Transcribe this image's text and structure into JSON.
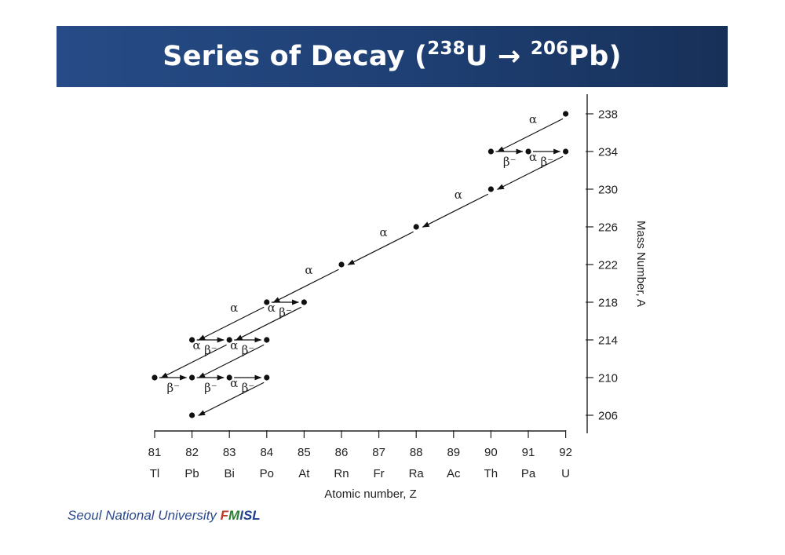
{
  "title": {
    "prefix": "Series of Decay (",
    "from_mass": "238",
    "from_element": "U",
    "arrow": " → ",
    "to_mass": "206",
    "to_element": "Pb",
    "suffix": ")"
  },
  "footer": {
    "institution": "Seoul National University ",
    "lab": [
      "F",
      "M",
      "I",
      "S",
      "L"
    ],
    "lab_colors": [
      "#c0392b",
      "#2e7d32",
      "#2c4a8c",
      "#1f3f8c",
      "#1f3f8c"
    ]
  },
  "chart_data": {
    "type": "diagram",
    "xlabel": "Atomic number, Z",
    "ylabel": "Mass Number, A",
    "x_ticks": [
      81,
      82,
      83,
      84,
      85,
      86,
      87,
      88,
      89,
      90,
      91,
      92
    ],
    "element_symbols": [
      "Tl",
      "Pb",
      "Bi",
      "Po",
      "At",
      "Rn",
      "Fr",
      "Ra",
      "Ac",
      "Th",
      "Pa",
      "U"
    ],
    "y_ticks": [
      206,
      210,
      214,
      218,
      222,
      226,
      230,
      234,
      238
    ],
    "xlim": [
      81,
      92
    ],
    "ylim": [
      205,
      241
    ],
    "nuclides": [
      {
        "z": 92,
        "a": 238
      },
      {
        "z": 90,
        "a": 234
      },
      {
        "z": 91,
        "a": 234
      },
      {
        "z": 92,
        "a": 234
      },
      {
        "z": 90,
        "a": 230
      },
      {
        "z": 88,
        "a": 226
      },
      {
        "z": 86,
        "a": 222
      },
      {
        "z": 84,
        "a": 218
      },
      {
        "z": 85,
        "a": 218
      },
      {
        "z": 82,
        "a": 214
      },
      {
        "z": 83,
        "a": 214
      },
      {
        "z": 84,
        "a": 214
      },
      {
        "z": 81,
        "a": 210
      },
      {
        "z": 82,
        "a": 210
      },
      {
        "z": 83,
        "a": 210
      },
      {
        "z": 84,
        "a": 210
      },
      {
        "z": 82,
        "a": 206
      }
    ],
    "decays": [
      {
        "type": "α",
        "from": [
          92,
          238
        ],
        "to": [
          90,
          234
        ]
      },
      {
        "type": "β⁻",
        "from": [
          90,
          234
        ],
        "to": [
          91,
          234
        ]
      },
      {
        "type": "β⁻",
        "from": [
          91,
          234
        ],
        "to": [
          92,
          234
        ]
      },
      {
        "type": "α",
        "from": [
          92,
          234
        ],
        "to": [
          90,
          230
        ]
      },
      {
        "type": "α",
        "from": [
          90,
          230
        ],
        "to": [
          88,
          226
        ]
      },
      {
        "type": "α",
        "from": [
          88,
          226
        ],
        "to": [
          86,
          222
        ]
      },
      {
        "type": "α",
        "from": [
          86,
          222
        ],
        "to": [
          84,
          218
        ]
      },
      {
        "type": "β⁻",
        "from": [
          84,
          218
        ],
        "to": [
          85,
          218
        ]
      },
      {
        "type": "α",
        "from": [
          84,
          218
        ],
        "to": [
          82,
          214
        ]
      },
      {
        "type": "α",
        "from": [
          85,
          218
        ],
        "to": [
          83,
          214
        ]
      },
      {
        "type": "β⁻",
        "from": [
          82,
          214
        ],
        "to": [
          83,
          214
        ]
      },
      {
        "type": "β⁻",
        "from": [
          83,
          214
        ],
        "to": [
          84,
          214
        ]
      },
      {
        "type": "α",
        "from": [
          83,
          214
        ],
        "to": [
          81,
          210
        ]
      },
      {
        "type": "α",
        "from": [
          84,
          214
        ],
        "to": [
          82,
          210
        ]
      },
      {
        "type": "β⁻",
        "from": [
          81,
          210
        ],
        "to": [
          82,
          210
        ]
      },
      {
        "type": "β⁻",
        "from": [
          82,
          210
        ],
        "to": [
          83,
          210
        ]
      },
      {
        "type": "β⁻",
        "from": [
          83,
          210
        ],
        "to": [
          84,
          210
        ]
      },
      {
        "type": "α",
        "from": [
          84,
          210
        ],
        "to": [
          82,
          206
        ]
      }
    ]
  }
}
